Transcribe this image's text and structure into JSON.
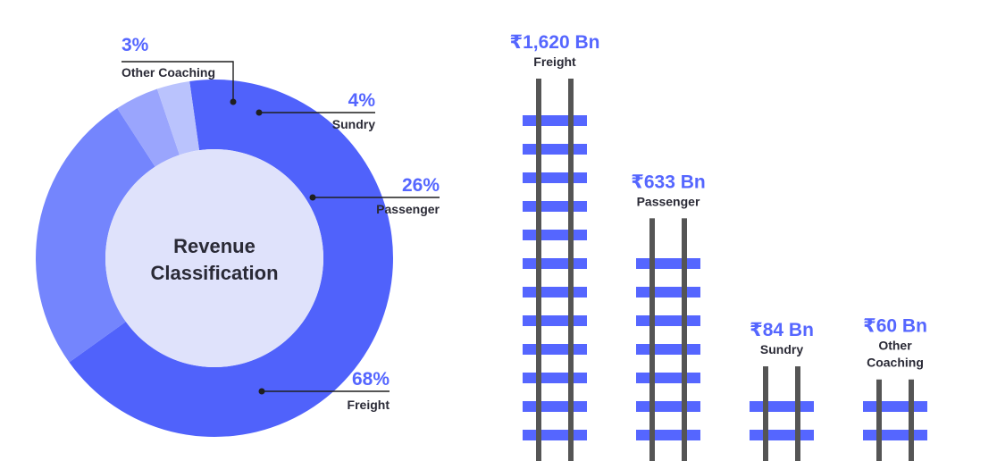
{
  "colors": {
    "accent": "#5566ff",
    "label_dark": "#2a2a36",
    "track_rail": "#555555",
    "donut_center": "#dfe2fb",
    "slice_freight": "#5062fb",
    "slice_passenger": "#7485fd",
    "slice_sundry": "#9aa5fd",
    "slice_other": "#bac3fd"
  },
  "chart_data": [
    {
      "type": "pie",
      "title": "Revenue Classification",
      "title_lines": [
        "Revenue",
        "Classification"
      ],
      "slices": [
        {
          "label": "Freight",
          "percent": 68,
          "percent_text": "68%"
        },
        {
          "label": "Passenger",
          "percent": 26,
          "percent_text": "26%"
        },
        {
          "label": "Sundry",
          "percent": 4,
          "percent_text": "4%"
        },
        {
          "label": "Other Coaching",
          "percent": 3,
          "percent_text": "3%"
        }
      ]
    },
    {
      "type": "bar",
      "unit": "₹ Bn",
      "bars": [
        {
          "category": "Freight",
          "category_lines": [
            "Freight"
          ],
          "value": 1620,
          "value_text": "₹1,620 Bn"
        },
        {
          "category": "Passenger",
          "category_lines": [
            "Passenger"
          ],
          "value": 633,
          "value_text": "₹633 Bn"
        },
        {
          "category": "Sundry",
          "category_lines": [
            "Sundry"
          ],
          "value": 84,
          "value_text": "₹84 Bn"
        },
        {
          "category": "Other Coaching",
          "category_lines": [
            "Other",
            "Coaching"
          ],
          "value": 60,
          "value_text": "₹60 Bn"
        }
      ]
    }
  ]
}
